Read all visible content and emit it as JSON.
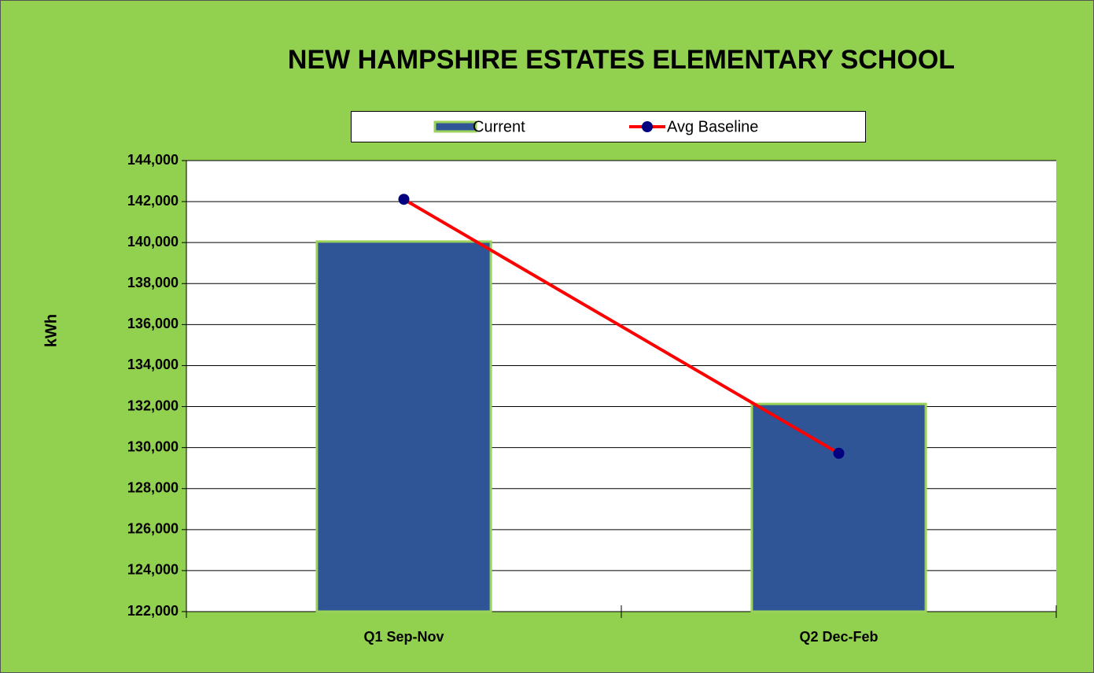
{
  "chart_data": {
    "type": "bar",
    "title": "NEW HAMPSHIRE ESTATES ELEMENTARY SCHOOL",
    "y_label": "kWh",
    "categories": [
      "Q1 Sep-Nov",
      "Q2 Dec-Feb"
    ],
    "series": [
      {
        "name": "Current",
        "type": "bar",
        "color": "#2f5597",
        "values": [
          140050,
          132130
        ]
      },
      {
        "name": "Avg Baseline",
        "type": "line",
        "color": "#ff0000",
        "marker_color": "#000080",
        "values": [
          142110,
          129720
        ]
      }
    ],
    "ylim": [
      122000,
      144000
    ],
    "yticks": [
      {
        "value": 122000,
        "label": "122,000"
      },
      {
        "value": 124000,
        "label": "124,000"
      },
      {
        "value": 126000,
        "label": "126,000"
      },
      {
        "value": 128000,
        "label": "128,000"
      },
      {
        "value": 130000,
        "label": "130,000"
      },
      {
        "value": 132000,
        "label": "132,000"
      },
      {
        "value": 134000,
        "label": "134,000"
      },
      {
        "value": 136000,
        "label": "136,000"
      },
      {
        "value": 138000,
        "label": "138,000"
      },
      {
        "value": 140000,
        "label": "140,000"
      },
      {
        "value": 142000,
        "label": "142,000"
      },
      {
        "value": 144000,
        "label": "144,000"
      }
    ],
    "grid": true,
    "legend": "top"
  }
}
